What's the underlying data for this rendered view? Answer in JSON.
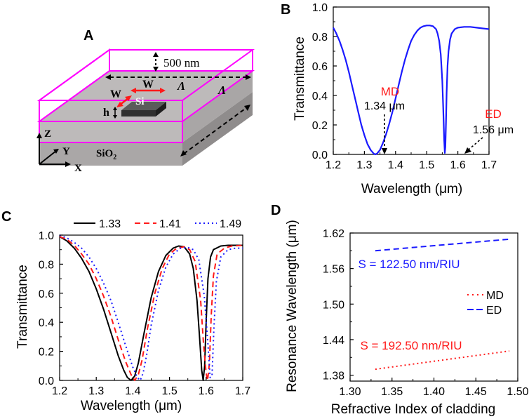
{
  "colors": {
    "blue": "#1a1aff",
    "red": "#ff1a1a",
    "magenta": "#ff00ff",
    "black": "#000000",
    "gray_top": "#b9b6b6",
    "gray_side": "#8f8c8c"
  },
  "panel_a": {
    "letter": "A",
    "cladding_thickness": "500 nm",
    "period_label": "Λ",
    "width_label": "W",
    "height_label": "h",
    "resonator_label": "Si",
    "substrate_label": "SiO",
    "substrate_sub": "2",
    "axis_x": "X",
    "axis_y": "Y",
    "axis_z": "Z"
  },
  "chart_data": [
    {
      "panel": "B",
      "type": "line",
      "xlabel": "Wavelength (μm)",
      "ylabel": "Transmittance",
      "xlim": [
        1.2,
        1.7
      ],
      "ylim": [
        0.0,
        1.0
      ],
      "xticks": [
        "1.2",
        "1.3",
        "1.4",
        "1.5",
        "1.6",
        "1.7"
      ],
      "yticks": [
        "0.0",
        "0.2",
        "0.4",
        "0.6",
        "0.8",
        "1.0"
      ],
      "series": [
        {
          "name": "Transmittance",
          "color": "#1a1aff",
          "x": [
            1.2,
            1.21,
            1.22,
            1.23,
            1.24,
            1.25,
            1.26,
            1.27,
            1.28,
            1.29,
            1.3,
            1.31,
            1.32,
            1.33,
            1.335,
            1.34,
            1.35,
            1.36,
            1.37,
            1.38,
            1.39,
            1.4,
            1.41,
            1.42,
            1.43,
            1.44,
            1.45,
            1.46,
            1.47,
            1.48,
            1.49,
            1.5,
            1.51,
            1.52,
            1.53,
            1.535,
            1.54,
            1.545,
            1.55,
            1.553,
            1.556,
            1.558,
            1.56,
            1.562,
            1.564,
            1.567,
            1.57,
            1.575,
            1.58,
            1.59,
            1.6,
            1.62,
            1.64,
            1.66,
            1.68,
            1.7
          ],
          "y": [
            0.86,
            0.82,
            0.77,
            0.71,
            0.64,
            0.56,
            0.47,
            0.38,
            0.29,
            0.2,
            0.13,
            0.07,
            0.03,
            0.005,
            0.0,
            0.005,
            0.03,
            0.08,
            0.14,
            0.21,
            0.29,
            0.38,
            0.47,
            0.56,
            0.64,
            0.71,
            0.77,
            0.81,
            0.84,
            0.86,
            0.87,
            0.875,
            0.875,
            0.87,
            0.85,
            0.82,
            0.77,
            0.68,
            0.5,
            0.32,
            0.1,
            0.01,
            0.05,
            0.22,
            0.42,
            0.6,
            0.7,
            0.78,
            0.82,
            0.85,
            0.86,
            0.865,
            0.865,
            0.86,
            0.855,
            0.85
          ]
        }
      ],
      "annotations": [
        {
          "label": "MD",
          "value": "1.34 μm",
          "x": 1.34,
          "y": 0.0
        },
        {
          "label": "ED",
          "value": "1.56 μm",
          "x": 1.56,
          "y": 0.0
        }
      ]
    },
    {
      "panel": "C",
      "type": "line",
      "xlabel": "Wavelength (μm)",
      "ylabel": "Transmittance",
      "xlim": [
        1.2,
        1.7
      ],
      "ylim": [
        0.0,
        1.0
      ],
      "xticks": [
        "1.2",
        "1.3",
        "1.4",
        "1.5",
        "1.6",
        "1.7"
      ],
      "yticks": [
        "0.0",
        "0.2",
        "0.4",
        "0.6",
        "0.8",
        "1.0"
      ],
      "legend": "top",
      "series": [
        {
          "name": "1.33",
          "color": "#000000",
          "dash": "solid",
          "x": [
            1.2,
            1.22,
            1.24,
            1.26,
            1.28,
            1.3,
            1.32,
            1.34,
            1.36,
            1.375,
            1.385,
            1.395,
            1.405,
            1.415,
            1.43,
            1.45,
            1.47,
            1.49,
            1.51,
            1.525,
            1.54,
            1.555,
            1.565,
            1.575,
            1.582,
            1.588,
            1.592,
            1.596,
            1.6,
            1.605,
            1.612,
            1.62,
            1.64,
            1.66,
            1.68,
            1.7
          ],
          "y": [
            0.99,
            0.96,
            0.91,
            0.84,
            0.75,
            0.63,
            0.49,
            0.33,
            0.17,
            0.07,
            0.02,
            0.0,
            0.03,
            0.12,
            0.32,
            0.57,
            0.75,
            0.86,
            0.91,
            0.925,
            0.92,
            0.87,
            0.77,
            0.55,
            0.3,
            0.07,
            0.0,
            0.1,
            0.4,
            0.7,
            0.85,
            0.9,
            0.925,
            0.93,
            0.93,
            0.93
          ]
        },
        {
          "name": "1.41",
          "color": "#ff1a1a",
          "dash": "dashed",
          "x": [
            1.2,
            1.22,
            1.24,
            1.26,
            1.28,
            1.3,
            1.32,
            1.34,
            1.36,
            1.38,
            1.395,
            1.405,
            1.415,
            1.425,
            1.44,
            1.46,
            1.48,
            1.5,
            1.52,
            1.54,
            1.555,
            1.57,
            1.585,
            1.593,
            1.6,
            1.604,
            1.609,
            1.614,
            1.62,
            1.63,
            1.65,
            1.67,
            1.7
          ],
          "y": [
            0.99,
            0.97,
            0.93,
            0.87,
            0.8,
            0.7,
            0.58,
            0.44,
            0.28,
            0.13,
            0.04,
            0.0,
            0.04,
            0.14,
            0.36,
            0.6,
            0.77,
            0.87,
            0.91,
            0.92,
            0.9,
            0.82,
            0.55,
            0.25,
            0.05,
            0.0,
            0.12,
            0.45,
            0.72,
            0.87,
            0.91,
            0.925,
            0.93
          ]
        },
        {
          "name": "1.49",
          "color": "#1a1aff",
          "dash": "dotted",
          "x": [
            1.2,
            1.22,
            1.24,
            1.26,
            1.28,
            1.3,
            1.32,
            1.34,
            1.36,
            1.38,
            1.4,
            1.412,
            1.42,
            1.428,
            1.438,
            1.45,
            1.47,
            1.49,
            1.51,
            1.53,
            1.55,
            1.565,
            1.58,
            1.595,
            1.605,
            1.611,
            1.616,
            1.621,
            1.628,
            1.64,
            1.66,
            1.68,
            1.7
          ],
          "y": [
            1.0,
            0.98,
            0.95,
            0.91,
            0.85,
            0.77,
            0.67,
            0.55,
            0.4,
            0.24,
            0.09,
            0.02,
            0.0,
            0.05,
            0.18,
            0.38,
            0.62,
            0.78,
            0.87,
            0.91,
            0.915,
            0.9,
            0.83,
            0.58,
            0.25,
            0.02,
            0.03,
            0.35,
            0.68,
            0.85,
            0.9,
            0.91,
            0.91
          ]
        }
      ]
    },
    {
      "panel": "D",
      "type": "line",
      "xlabel": "Refractive Index of cladding",
      "ylabel": "Resonance Wavelength (μm)",
      "xlim": [
        1.3,
        1.5
      ],
      "ylim": [
        1.37,
        1.62
      ],
      "xticks": [
        "1.30",
        "1.35",
        "1.40",
        "1.45",
        "1.50"
      ],
      "yticks": [
        "1.38",
        "1.44",
        "1.50",
        "1.56",
        "1.62"
      ],
      "legend": "right",
      "series": [
        {
          "name": "MD",
          "color": "#ff1a1a",
          "dash": "dotted",
          "x": [
            1.33,
            1.41,
            1.49
          ],
          "y": [
            1.39,
            1.4054,
            1.4208
          ],
          "annotation": "S = 192.50 nm/RIU"
        },
        {
          "name": "ED",
          "color": "#1a1aff",
          "dash": "dashed",
          "x": [
            1.33,
            1.41,
            1.49
          ],
          "y": [
            1.59,
            1.5998,
            1.6096
          ],
          "annotation": "S = 122.50 nm/RIU"
        }
      ]
    }
  ]
}
